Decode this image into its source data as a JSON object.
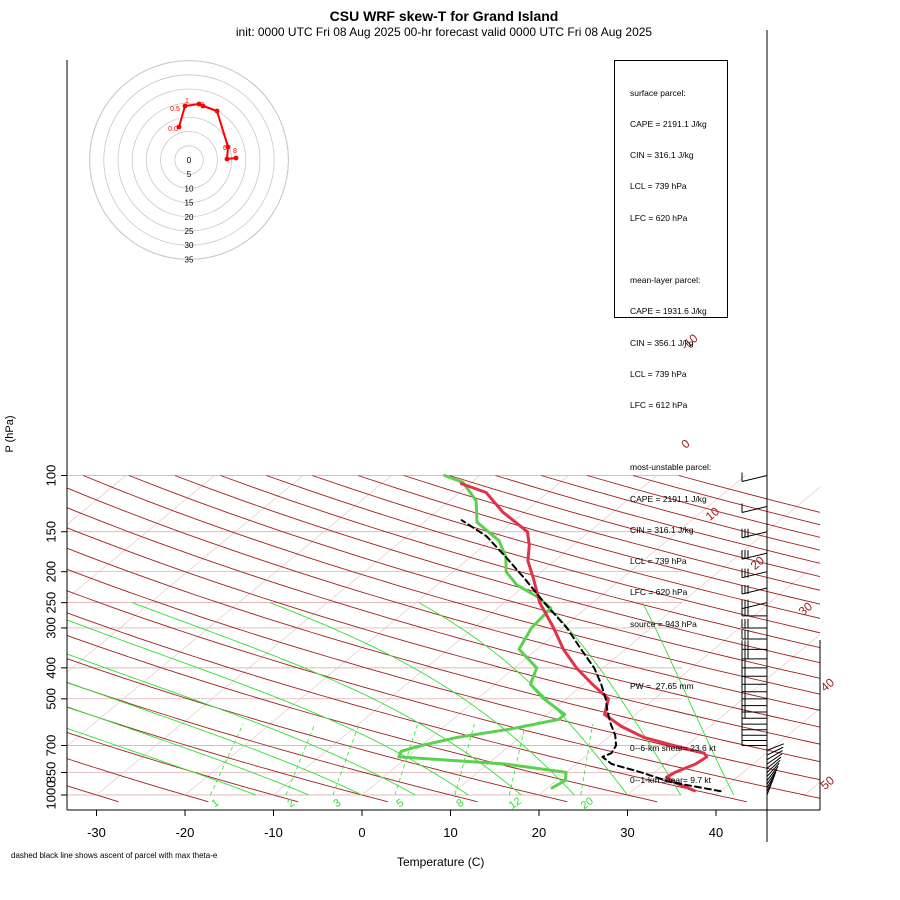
{
  "header": {
    "title": "CSU WRF skew-T for Grand Island",
    "subtitle": "init: 0000 UTC Fri 08 Aug 2025     00-hr forecast valid 0000 UTC Fri 08 Aug 2025"
  },
  "footnote": "dashed black line shows ascent of parcel with max theta-e",
  "info": {
    "surface": {
      "heading": "surface parcel:",
      "cape": "CAPE = 2191.1 J/kg",
      "cin": "CIN = 316.1 J/kg",
      "lcl": "LCL = 739 hPa",
      "lfc": "LFC = 620 hPa"
    },
    "mean_layer": {
      "heading": "mean-layer parcel:",
      "cape": "CAPE = 1931.6 J/kg",
      "cin": "CIN = 356.1 J/kg",
      "lcl": "LCL = 739 hPa",
      "lfc": "LFC = 612 hPa"
    },
    "most_unstable": {
      "heading": "most-unstable parcel:",
      "cape": "CAPE = 2191.1 J/kg",
      "cin": "CIN = 316.1 J/kg",
      "lcl": "LCL = 739 hPa",
      "lfc": "LFC = 620 hPa",
      "source": "source = 943 hPa"
    },
    "pw": "PW =  27.65 mm",
    "shear_06": "0--6-km shear= 23.6 kt",
    "shear_01": "0--1-km shear= 9.7 kt"
  },
  "chart_data": {
    "type": "line",
    "title": "CSU WRF skew-T for Grand Island",
    "xlabel": "Temperature (C)",
    "ylabel": "P (hPa)",
    "x_ticks": [
      -30,
      -20,
      -10,
      0,
      10,
      20,
      30,
      40
    ],
    "y_ticks": [
      100,
      150,
      200,
      250,
      300,
      400,
      500,
      700,
      850,
      1000
    ],
    "skew_labels": [
      "-10",
      "0",
      "10",
      "20",
      "30",
      "40",
      "50"
    ],
    "mixing_ratio_labels": [
      "1",
      "2",
      "3",
      "5",
      "8",
      "12",
      "20"
    ],
    "colors": {
      "temperature": "#e0334a",
      "dewpoint": "#5cd050",
      "parcel": "#000000",
      "isotherm": "#a02020",
      "mixing_ratio": "#33e033",
      "grid": "#d9a0a0",
      "hodograph": "#ff0000"
    },
    "series": [
      {
        "name": "temperature",
        "points": [
          [
            37,
            970
          ],
          [
            34,
            920
          ],
          [
            32,
            880
          ],
          [
            32.3,
            850
          ],
          [
            33.5,
            800
          ],
          [
            33.8,
            760
          ],
          [
            33,
            740
          ],
          [
            28.5,
            700
          ],
          [
            24,
            660
          ],
          [
            20,
            610
          ],
          [
            16.5,
            560
          ],
          [
            14.8,
            500
          ],
          [
            11,
            450
          ],
          [
            7,
            400
          ],
          [
            3,
            350
          ],
          [
            -1,
            300
          ],
          [
            -6,
            250
          ],
          [
            -10,
            210
          ],
          [
            -13,
            185
          ],
          [
            -15,
            165
          ],
          [
            -17,
            150
          ],
          [
            -22.5,
            130
          ],
          [
            -27,
            113
          ],
          [
            -31,
            106
          ]
        ]
      },
      {
        "name": "dewpoint",
        "points": [
          [
            20.5,
            950
          ],
          [
            21,
            900
          ],
          [
            20,
            850
          ],
          [
            12,
            800
          ],
          [
            -1,
            760
          ],
          [
            -1.5,
            730
          ],
          [
            0,
            700
          ],
          [
            3,
            660
          ],
          [
            8,
            620
          ],
          [
            12,
            580
          ],
          [
            12,
            560
          ],
          [
            7.5,
            500
          ],
          [
            4,
            450
          ],
          [
            2.5,
            400
          ],
          [
            -2,
            350
          ],
          [
            -3.5,
            300
          ],
          [
            -4,
            260
          ],
          [
            -7,
            240
          ],
          [
            -11,
            220
          ],
          [
            -14,
            200
          ],
          [
            -16,
            180
          ],
          [
            -19,
            160
          ],
          [
            -24,
            140
          ],
          [
            -27,
            120
          ],
          [
            -31,
            105
          ],
          [
            -34,
            100
          ]
        ]
      },
      {
        "name": "parcel",
        "points": [
          [
            40,
            973
          ],
          [
            33,
            910
          ],
          [
            28.5,
            850
          ],
          [
            24,
            800
          ],
          [
            22,
            760
          ],
          [
            22.5,
            740
          ],
          [
            22,
            700
          ],
          [
            20.5,
            650
          ],
          [
            18.5,
            600
          ],
          [
            16.5,
            550
          ],
          [
            14.5,
            500
          ],
          [
            12,
            450
          ],
          [
            9,
            400
          ],
          [
            5,
            350
          ],
          [
            0.5,
            300
          ],
          [
            -5.5,
            250
          ],
          [
            -11,
            210
          ],
          [
            -16,
            180
          ],
          [
            -21,
            155
          ],
          [
            -26,
            138
          ]
        ]
      }
    ],
    "hodograph": {
      "ring_labels": [
        "0",
        "5",
        "10",
        "15",
        "20",
        "25",
        "30",
        "35"
      ],
      "height_labels": [
        "0.0",
        "0.5",
        "1",
        "3",
        "6",
        "8"
      ]
    }
  }
}
